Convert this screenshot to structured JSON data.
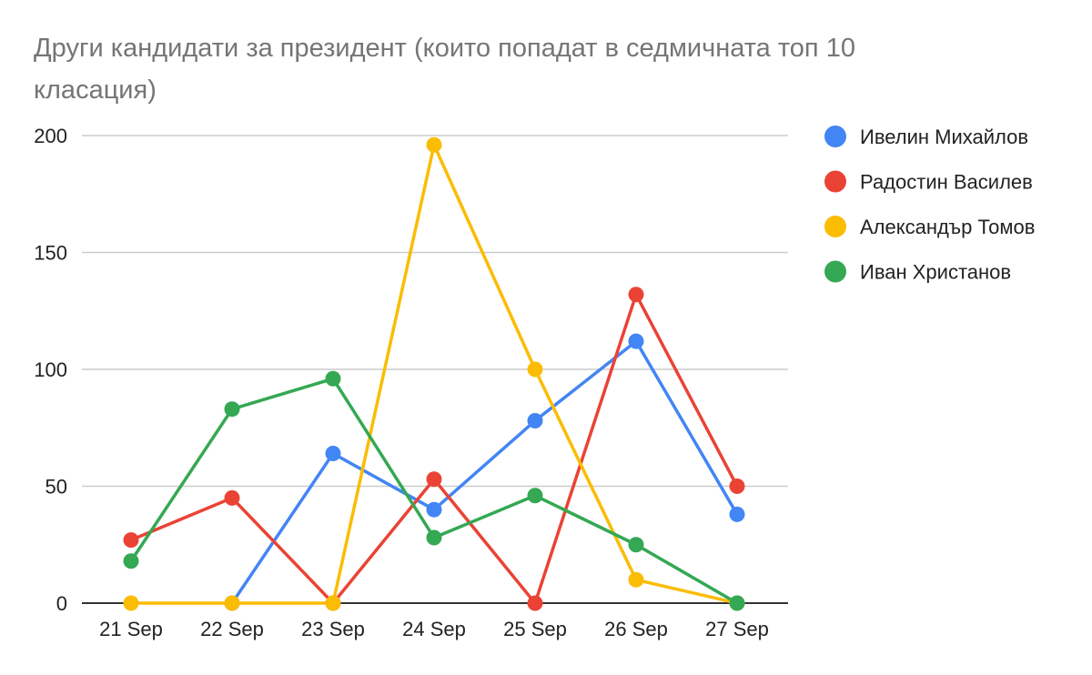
{
  "chart_data": {
    "type": "line",
    "title": "Други кандидати за президент (които попадат в седмичната топ 10 класация)",
    "xlabel": "",
    "ylabel": "",
    "categories": [
      "21 Sep",
      "22 Sep",
      "23 Sep",
      "24 Sep",
      "25 Sep",
      "26 Sep",
      "27 Sep"
    ],
    "ylim": [
      0,
      200
    ],
    "yticks": [
      0,
      50,
      100,
      150,
      200
    ],
    "grid": true,
    "legend_position": "right",
    "series": [
      {
        "name": "Ивелин Михайлов",
        "color": "#4285f4",
        "values": [
          null,
          0,
          64,
          40,
          78,
          112,
          38
        ]
      },
      {
        "name": "Радостин Василев",
        "color": "#ea4335",
        "values": [
          27,
          45,
          0,
          53,
          0,
          132,
          50
        ]
      },
      {
        "name": "Александър Томов",
        "color": "#fbbc04",
        "values": [
          0,
          0,
          0,
          196,
          100,
          10,
          0
        ]
      },
      {
        "name": "Иван Христанов",
        "color": "#34a853",
        "values": [
          18,
          83,
          96,
          28,
          46,
          25,
          0
        ]
      }
    ]
  }
}
